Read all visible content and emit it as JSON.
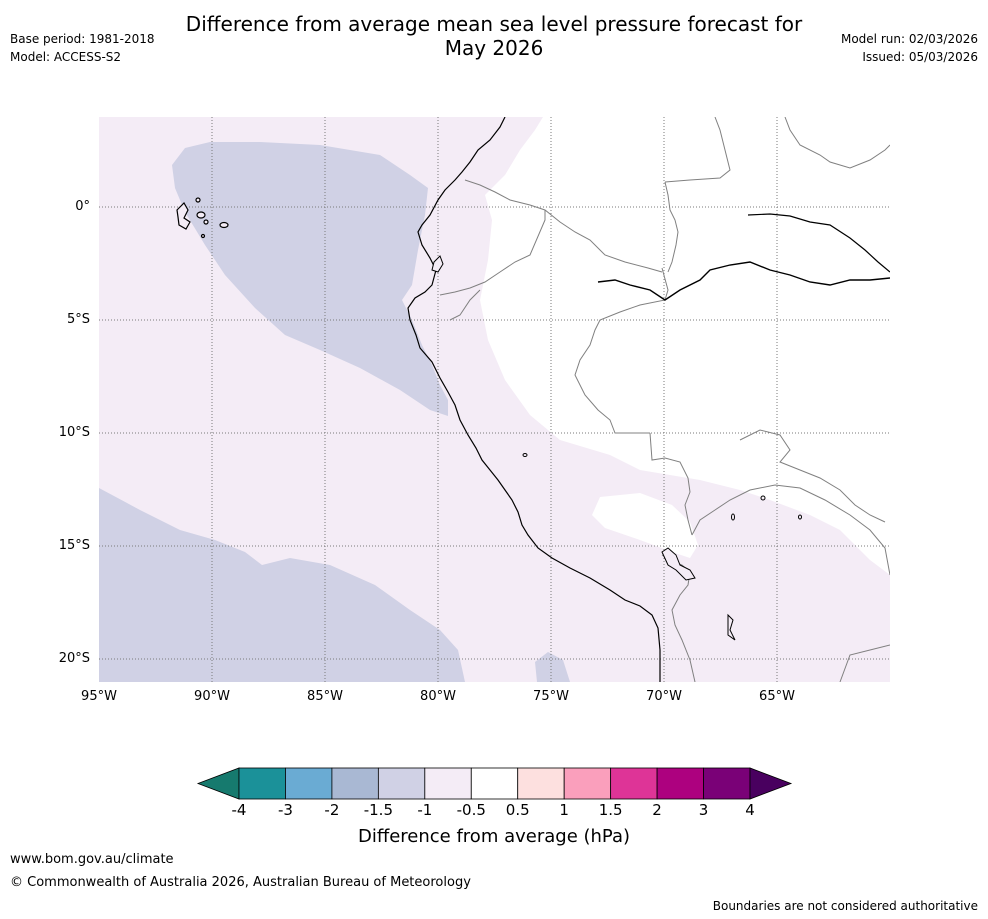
{
  "title_line1": "Difference from average mean sea level pressure forecast for",
  "title_line2": "May 2026",
  "base_period": "Base period: 1981-2018",
  "model": "Model: ACCESS-S2",
  "model_run": "Model run: 02/03/2026",
  "issued": "Issued: 05/03/2026",
  "lat_labels": [
    "0°",
    "5°S",
    "10°S",
    "15°S",
    "20°S"
  ],
  "lon_labels": [
    "95°W",
    "90°W",
    "85°W",
    "80°W",
    "75°W",
    "70°W",
    "65°W"
  ],
  "colorbar": {
    "labels": [
      "-4",
      "-3",
      "-2",
      "-1.5",
      "-1",
      "-0.5",
      "0.5",
      "1",
      "1.5",
      "2",
      "3",
      "4"
    ],
    "colors": [
      "#167a6e",
      "#1b9199",
      "#6aabd3",
      "#a9b8d3",
      "#d0d1e5",
      "#f4ecf6",
      "#ffffff",
      "#fde0df",
      "#fa9fbc",
      "#de3497",
      "#ad017f",
      "#7a0177",
      "#49005f"
    ],
    "title": "Difference from average (hPa)"
  },
  "footer_url": "www.bom.gov.au/climate",
  "footer_copyright": "© Commonwealth of Australia 2026, Australian Bureau of Meteorology",
  "disclaimer": "Boundaries are not considered authoritative"
}
